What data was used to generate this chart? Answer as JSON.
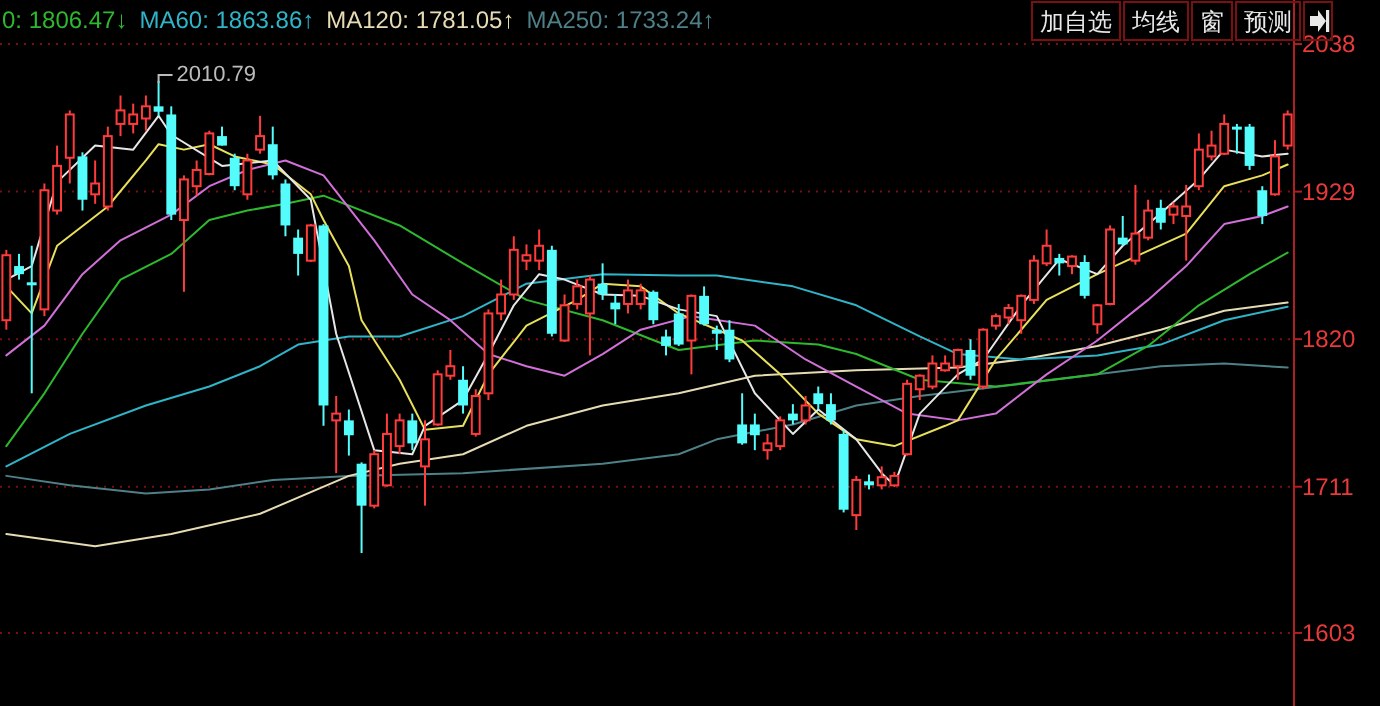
{
  "chart_data": {
    "type": "candlestick",
    "categories": [
      null,
      null,
      null,
      null,
      null,
      null,
      null,
      null,
      null,
      null,
      null,
      null,
      null,
      null,
      null,
      null,
      null,
      null,
      null,
      null,
      null,
      null,
      null,
      null,
      null,
      null,
      null,
      null,
      null,
      null,
      null,
      null,
      null,
      null,
      null,
      null,
      null,
      null,
      null,
      null,
      null,
      null,
      null,
      null,
      null,
      null,
      null,
      null,
      null,
      null,
      null,
      null,
      null,
      null,
      null,
      null,
      null,
      null,
      null,
      null,
      null,
      null,
      null,
      null,
      null,
      null,
      null,
      null,
      null,
      null,
      null,
      null,
      null,
      null,
      null,
      null,
      null,
      null,
      null,
      null,
      null,
      null,
      null,
      null,
      null,
      null,
      null,
      null,
      null,
      null,
      null,
      null,
      null,
      null,
      null,
      null,
      null,
      null,
      null,
      null,
      null,
      null
    ],
    "ohlc": [
      [
        1834,
        1886,
        1827,
        1882
      ],
      [
        1874,
        1883,
        1864,
        1868
      ],
      [
        1862,
        1889,
        1780,
        1861
      ],
      [
        1842,
        1935,
        1837,
        1930
      ],
      [
        1915,
        1963,
        1912,
        1948
      ],
      [
        1954,
        1989,
        1935,
        1986
      ],
      [
        1955,
        1958,
        1915,
        1923
      ],
      [
        1927,
        1952,
        1920,
        1935
      ],
      [
        1918,
        1977,
        1915,
        1970
      ],
      [
        1979,
        2000,
        1970,
        1989
      ],
      [
        1979,
        1994,
        1972,
        1986
      ],
      [
        1983,
        2000,
        1974,
        1992
      ],
      [
        1992,
        2010.79,
        1985,
        1988
      ],
      [
        1986,
        1992,
        1908,
        1912
      ],
      [
        1908,
        1941,
        1855,
        1938
      ],
      [
        1933,
        1952,
        1926,
        1945
      ],
      [
        1942,
        1974,
        1941,
        1972
      ],
      [
        1970,
        1977,
        1963,
        1963
      ],
      [
        1954,
        1957,
        1930,
        1933
      ],
      [
        1927,
        1957,
        1923,
        1952
      ],
      [
        1960,
        1985,
        1957,
        1970
      ],
      [
        1964,
        1977,
        1938,
        1941
      ],
      [
        1935,
        1938,
        1896,
        1904
      ],
      [
        1895,
        1901,
        1867,
        1883
      ],
      [
        1878,
        1905,
        1877,
        1904
      ],
      [
        1904,
        1905,
        1756,
        1771
      ],
      [
        1760,
        1778,
        1721,
        1765
      ],
      [
        1760,
        1768,
        1734,
        1749
      ],
      [
        1728,
        1729,
        1662,
        1697
      ],
      [
        1697,
        1738,
        1695,
        1735
      ],
      [
        1712,
        1765,
        1711,
        1750
      ],
      [
        1741,
        1765,
        1735,
        1760
      ],
      [
        1760,
        1765,
        1738,
        1743
      ],
      [
        1726,
        1760,
        1697,
        1746
      ],
      [
        1757,
        1797,
        1756,
        1794
      ],
      [
        1793,
        1812,
        1790,
        1800
      ],
      [
        1790,
        1800,
        1765,
        1771
      ],
      [
        1750,
        1783,
        1748,
        1778
      ],
      [
        1780,
        1842,
        1775,
        1839
      ],
      [
        1839,
        1864,
        1834,
        1853
      ],
      [
        1853,
        1896,
        1849,
        1886
      ],
      [
        1878,
        1890,
        1871,
        1882
      ],
      [
        1878,
        1901,
        1871,
        1889
      ],
      [
        1886,
        1889,
        1822,
        1824
      ],
      [
        1819,
        1853,
        1818,
        1845
      ],
      [
        1846,
        1864,
        1842,
        1859
      ],
      [
        1839,
        1867,
        1808,
        1864
      ],
      [
        1861,
        1876,
        1849,
        1853
      ],
      [
        1847,
        1853,
        1831,
        1842
      ],
      [
        1846,
        1864,
        1839,
        1856
      ],
      [
        1846,
        1861,
        1842,
        1856
      ],
      [
        1855,
        1856,
        1831,
        1834
      ],
      [
        1822,
        1827,
        1808,
        1815
      ],
      [
        1839,
        1846,
        1815,
        1816
      ],
      [
        1819,
        1853,
        1794,
        1852
      ],
      [
        1852,
        1859,
        1830,
        1831
      ],
      [
        1827,
        1830,
        1812,
        1824
      ],
      [
        1827,
        1834,
        1803,
        1805
      ],
      [
        1757,
        1780,
        1742,
        1743
      ],
      [
        1757,
        1765,
        1738,
        1749
      ],
      [
        1738,
        1750,
        1731,
        1743
      ],
      [
        1741,
        1763,
        1738,
        1760
      ],
      [
        1765,
        1772,
        1757,
        1760
      ],
      [
        1760,
        1778,
        1757,
        1771
      ],
      [
        1780,
        1785,
        1768,
        1772
      ],
      [
        1772,
        1780,
        1757,
        1760
      ],
      [
        1750,
        1753,
        1692,
        1694
      ],
      [
        1690,
        1719,
        1679,
        1716
      ],
      [
        1715,
        1720,
        1709,
        1712
      ],
      [
        1712,
        1726,
        1709,
        1718
      ],
      [
        1712,
        1722,
        1711,
        1719
      ],
      [
        1735,
        1790,
        1734,
        1787
      ],
      [
        1783,
        1794,
        1775,
        1793
      ],
      [
        1785,
        1808,
        1783,
        1802
      ],
      [
        1797,
        1808,
        1796,
        1802
      ],
      [
        1800,
        1813,
        1790,
        1812
      ],
      [
        1812,
        1820,
        1790,
        1793
      ],
      [
        1785,
        1828,
        1783,
        1827
      ],
      [
        1830,
        1839,
        1827,
        1837
      ],
      [
        1836,
        1846,
        1831,
        1843
      ],
      [
        1834,
        1853,
        1824,
        1852
      ],
      [
        1849,
        1882,
        1846,
        1878
      ],
      [
        1876,
        1901,
        1874,
        1889
      ],
      [
        1880,
        1883,
        1867,
        1876
      ],
      [
        1874,
        1882,
        1868,
        1881
      ],
      [
        1877,
        1882,
        1850,
        1852
      ],
      [
        1831,
        1846,
        1824,
        1845
      ],
      [
        1846,
        1904,
        1845,
        1901
      ],
      [
        1895,
        1911,
        1889,
        1890
      ],
      [
        1878,
        1934,
        1875,
        1898
      ],
      [
        1895,
        1923,
        1893,
        1915
      ],
      [
        1917,
        1923,
        1901,
        1906
      ],
      [
        1912,
        1921,
        1905,
        1918
      ],
      [
        1911,
        1934,
        1878,
        1918
      ],
      [
        1933,
        1972,
        1930,
        1960
      ],
      [
        1955,
        1974,
        1952,
        1963
      ],
      [
        1957,
        1986,
        1956,
        1979
      ],
      [
        1977,
        1979,
        1957,
        1976
      ],
      [
        1977,
        1979,
        1945,
        1948
      ],
      [
        1930,
        1933,
        1905,
        1911
      ],
      [
        1927,
        1967,
        1926,
        1955
      ],
      [
        1963,
        1989,
        1960,
        1986
      ]
    ],
    "series": [
      {
        "type": "line",
        "color": "#4e8088",
        "name": "MA250: 1733.24↑",
        "values": [
          1719,
          null,
          null,
          null,
          null,
          1712,
          null,
          null,
          null,
          null,
          null,
          1706,
          null,
          null,
          null,
          null,
          1709,
          null,
          null,
          null,
          null,
          1716,
          null,
          null,
          null,
          null,
          null,
          1719,
          null,
          null,
          null,
          null,
          null,
          null,
          null,
          null,
          1721,
          null,
          null,
          null,
          null,
          null,
          null,
          null,
          null,
          null,
          null,
          1728,
          null,
          null,
          null,
          null,
          null,
          1735,
          null,
          null,
          1746,
          null,
          null,
          null,
          null,
          null,
          1757,
          null,
          null,
          null,
          null,
          1771,
          null,
          null,
          null,
          null,
          1778,
          null,
          null,
          null,
          null,
          null,
          null,
          null,
          1787,
          null,
          null,
          null,
          null,
          null,
          1794,
          null,
          null,
          null,
          null,
          1800,
          null,
          null,
          null,
          null,
          1802,
          null,
          null,
          null,
          null,
          1799
        ]
      },
      {
        "type": "line",
        "color": "#e6dcb4",
        "name": "MA120: 1781.05↑",
        "values": [
          1676,
          null,
          null,
          null,
          null,
          null,
          null,
          1667,
          null,
          null,
          null,
          null,
          null,
          1676,
          null,
          null,
          null,
          null,
          null,
          null,
          1691,
          null,
          null,
          null,
          null,
          null,
          null,
          1719,
          null,
          null,
          null,
          1728,
          null,
          null,
          null,
          null,
          1735,
          null,
          null,
          null,
          null,
          1756,
          null,
          null,
          null,
          null,
          null,
          1771,
          null,
          null,
          null,
          null,
          null,
          1780,
          null,
          null,
          null,
          null,
          null,
          1793,
          null,
          null,
          null,
          null,
          null,
          null,
          null,
          1797,
          null,
          null,
          null,
          null,
          null,
          null,
          null,
          1799,
          null,
          null,
          null,
          null,
          1805,
          null,
          null,
          null,
          null,
          null,
          1815,
          null,
          null,
          null,
          null,
          1827,
          null,
          null,
          null,
          null,
          1841,
          null,
          null,
          null,
          null,
          1847
        ]
      },
      {
        "type": "line",
        "color": "#2fb4c8",
        "name": "MA60: 1863.86↑",
        "values": [
          1726,
          null,
          null,
          null,
          null,
          1750,
          null,
          null,
          null,
          null,
          null,
          1771,
          null,
          null,
          null,
          null,
          1785,
          null,
          null,
          null,
          1800,
          null,
          null,
          1816,
          null,
          null,
          null,
          1822,
          null,
          null,
          null,
          1822,
          null,
          null,
          null,
          null,
          1837,
          null,
          null,
          null,
          null,
          1861,
          null,
          null,
          null,
          null,
          null,
          1868,
          null,
          null,
          null,
          null,
          null,
          1867,
          null,
          null,
          1867,
          null,
          null,
          null,
          null,
          null,
          1859,
          null,
          null,
          null,
          null,
          1845,
          null,
          null,
          null,
          null,
          1822,
          null,
          null,
          1809,
          null,
          null,
          null,
          null,
          1805,
          null,
          null,
          null,
          null,
          null,
          1808,
          null,
          null,
          null,
          null,
          1816,
          null,
          null,
          null,
          null,
          1834,
          null,
          null,
          null,
          null,
          1844
        ]
      },
      {
        "type": "line",
        "color": "#2eb82e",
        "name": "0: 1806.47↓",
        "values": [
          1741,
          null,
          null,
          1780,
          null,
          null,
          1824,
          null,
          null,
          1864,
          null,
          null,
          null,
          1883,
          null,
          null,
          1908,
          null,
          null,
          1915,
          null,
          null,
          1920,
          null,
          null,
          1926,
          null,
          null,
          null,
          null,
          null,
          1904,
          null,
          null,
          null,
          null,
          1876,
          null,
          null,
          null,
          null,
          1849,
          null,
          null,
          null,
          null,
          null,
          1834,
          null,
          null,
          null,
          null,
          null,
          1812,
          null,
          null,
          null,
          null,
          null,
          1819,
          null,
          null,
          null,
          null,
          1816,
          null,
          null,
          1809,
          null,
          null,
          null,
          null,
          1790,
          null,
          null,
          null,
          null,
          null,
          1785,
          null,
          null,
          null,
          null,
          null,
          null,
          null,
          1794,
          null,
          null,
          null,
          1815,
          null,
          null,
          null,
          1845,
          null,
          null,
          null,
          1868,
          null,
          null,
          1884
        ]
      },
      {
        "type": "line",
        "color": "#d070d8",
        "values": [
          1808,
          null,
          null,
          1830,
          null,
          null,
          1868,
          null,
          null,
          1893,
          null,
          null,
          null,
          1912,
          null,
          null,
          1933,
          null,
          null,
          1945,
          null,
          null,
          1952,
          null,
          null,
          1941,
          null,
          null,
          null,
          1893,
          null,
          null,
          1853,
          null,
          null,
          1834,
          null,
          null,
          1809,
          null,
          null,
          1800,
          null,
          null,
          1793,
          null,
          null,
          1809,
          null,
          null,
          1827,
          null,
          null,
          null,
          1837,
          null,
          null,
          null,
          null,
          1830,
          null,
          null,
          null,
          1805,
          null,
          null,
          null,
          1785,
          null,
          null,
          null,
          1765,
          null,
          null,
          null,
          1760,
          null,
          null,
          1765,
          null,
          null,
          null,
          1794,
          null,
          null,
          null,
          1819,
          null,
          null,
          null,
          1849,
          null,
          null,
          1874,
          null,
          null,
          1905,
          null,
          null,
          1911,
          null,
          1918
        ]
      },
      {
        "type": "line",
        "color": "#e8e05a",
        "values": [
          1859,
          null,
          1839,
          null,
          1889,
          null,
          null,
          null,
          1918,
          null,
          null,
          1952,
          1964,
          null,
          1960,
          null,
          1964,
          null,
          1955,
          null,
          null,
          1949,
          null,
          null,
          1927,
          1908,
          null,
          1874,
          1834,
          null,
          null,
          1790,
          null,
          1753,
          null,
          null,
          1756,
          null,
          1794,
          null,
          null,
          1830,
          null,
          null,
          null,
          1849,
          null,
          1861,
          null,
          null,
          1859,
          null,
          null,
          1839,
          null,
          null,
          null,
          null,
          1819,
          null,
          null,
          1794,
          null,
          null,
          1765,
          null,
          null,
          1746,
          null,
          null,
          1741,
          null,
          null,
          null,
          1756,
          1760,
          null,
          null,
          1805,
          null,
          null,
          null,
          1849,
          null,
          null,
          null,
          1868,
          null,
          null,
          1881,
          null,
          null,
          null,
          1898,
          null,
          null,
          1933,
          null,
          null,
          1941,
          null,
          1949
        ]
      },
      {
        "type": "line",
        "color": "#e6e6e6",
        "values": [
          1864,
          null,
          1874,
          null,
          1936,
          null,
          null,
          1963,
          null,
          null,
          1960,
          null,
          1985,
          1971,
          null,
          null,
          null,
          1948,
          null,
          null,
          null,
          1952,
          null,
          null,
          1923,
          null,
          1824,
          null,
          null,
          1738,
          null,
          null,
          1735,
          1756,
          null,
          null,
          1775,
          null,
          1809,
          null,
          1845,
          null,
          1868,
          null,
          1864,
          null,
          null,
          1853,
          null,
          null,
          1852,
          null,
          null,
          1842,
          null,
          null,
          1837,
          null,
          null,
          1780,
          null,
          null,
          1750,
          null,
          1768,
          null,
          null,
          1746,
          null,
          1721,
          1712,
          null,
          1765,
          null,
          null,
          1794,
          null,
          1805,
          null,
          null,
          1845,
          null,
          null,
          1879,
          null,
          null,
          1868,
          null,
          1889,
          null,
          null,
          1913,
          null,
          null,
          1938,
          null,
          1960,
          null,
          null,
          1955,
          null,
          1957
        ]
      }
    ],
    "ylim": [
      1549,
      2041
    ],
    "yticks": [
      1603,
      1711,
      1820,
      1929,
      2038
    ],
    "grid": "y",
    "legend": "top left",
    "tick_labels": "y",
    "annotations": [
      "2010.79",
      "加自选",
      "均线",
      "窗",
      "预测"
    ]
  }
}
